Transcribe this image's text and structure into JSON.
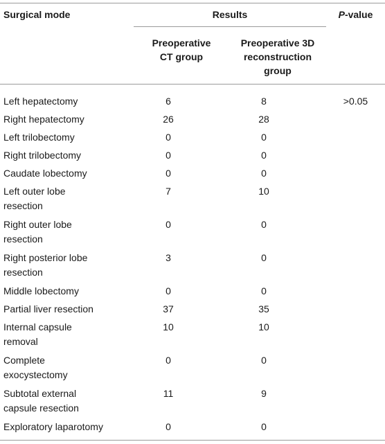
{
  "header": {
    "surgical_mode": "Surgical mode",
    "results": "Results",
    "p_value_italic": "P",
    "p_value_suffix": "-value",
    "ct_group_line1": "Preoperative",
    "ct_group_line2": "CT group",
    "recon_group_line1": "Preoperative 3D",
    "recon_group_line2": "reconstruction",
    "recon_group_line3": "group"
  },
  "rows": [
    {
      "name": [
        "Left hepatectomy"
      ],
      "ct": "6",
      "recon": "8",
      "p": ">0.05"
    },
    {
      "name": [
        "Right hepatectomy"
      ],
      "ct": "26",
      "recon": "28",
      "p": ""
    },
    {
      "name": [
        "Left trilobectomy"
      ],
      "ct": "0",
      "recon": "0",
      "p": ""
    },
    {
      "name": [
        "Right trilobectomy"
      ],
      "ct": "0",
      "recon": "0",
      "p": ""
    },
    {
      "name": [
        "Caudate lobectomy"
      ],
      "ct": "0",
      "recon": "0",
      "p": ""
    },
    {
      "name": [
        "Left outer lobe",
        "resection"
      ],
      "ct": "7",
      "recon": "10",
      "p": ""
    },
    {
      "name": [
        "Right outer lobe",
        "resection"
      ],
      "ct": "0",
      "recon": "0",
      "p": ""
    },
    {
      "name": [
        "Right posterior lobe",
        "resection"
      ],
      "ct": "3",
      "recon": "0",
      "p": ""
    },
    {
      "name": [
        "Middle lobectomy"
      ],
      "ct": "0",
      "recon": "0",
      "p": ""
    },
    {
      "name": [
        "Partial liver resection"
      ],
      "ct": "37",
      "recon": "35",
      "p": ""
    },
    {
      "name": [
        "Internal capsule",
        "removal"
      ],
      "ct": "10",
      "recon": "10",
      "p": ""
    },
    {
      "name": [
        "Complete",
        "exocystectomy"
      ],
      "ct": "0",
      "recon": "0",
      "p": ""
    },
    {
      "name": [
        "Subtotal external",
        "capsule resection"
      ],
      "ct": "11",
      "recon": "9",
      "p": ""
    },
    {
      "name": [
        "Exploratory laparotomy"
      ],
      "ct": "0",
      "recon": "0",
      "p": ""
    }
  ]
}
